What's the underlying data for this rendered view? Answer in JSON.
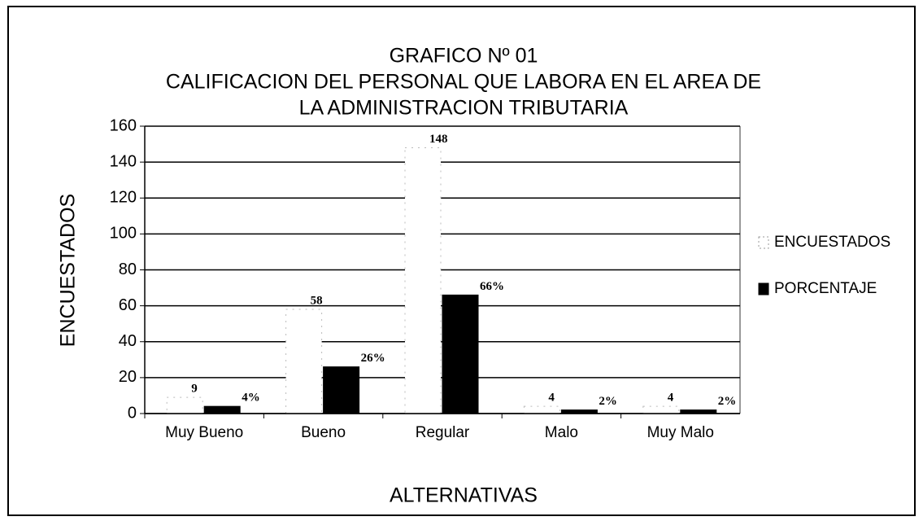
{
  "chart_data": {
    "type": "bar",
    "title": [
      "GRAFICO Nº 01",
      "CALIFICACION DEL PERSONAL QUE LABORA EN EL AREA DE",
      "LA ADMINISTRACION TRIBUTARIA"
    ],
    "x_label": "ALTERNATIVAS",
    "y_label": "ENCUESTADOS",
    "categories": [
      "Muy Bueno",
      "Bueno",
      "Regular",
      "Malo",
      "Muy Malo"
    ],
    "series": [
      {
        "name": "ENCUESTADOS",
        "color": "#ffffff",
        "values": [
          9,
          58,
          148,
          4,
          4
        ]
      },
      {
        "name": "PORCENTAJE",
        "color": "#000000",
        "values": [
          4,
          26,
          66,
          2,
          2
        ],
        "value_labels": [
          "4%",
          "26%",
          "66%",
          "2%",
          "2%"
        ]
      }
    ],
    "ylim": [
      0,
      160
    ],
    "yticks": [
      0,
      20,
      40,
      60,
      80,
      100,
      120,
      140,
      160
    ],
    "grid": true,
    "legend": "right"
  }
}
